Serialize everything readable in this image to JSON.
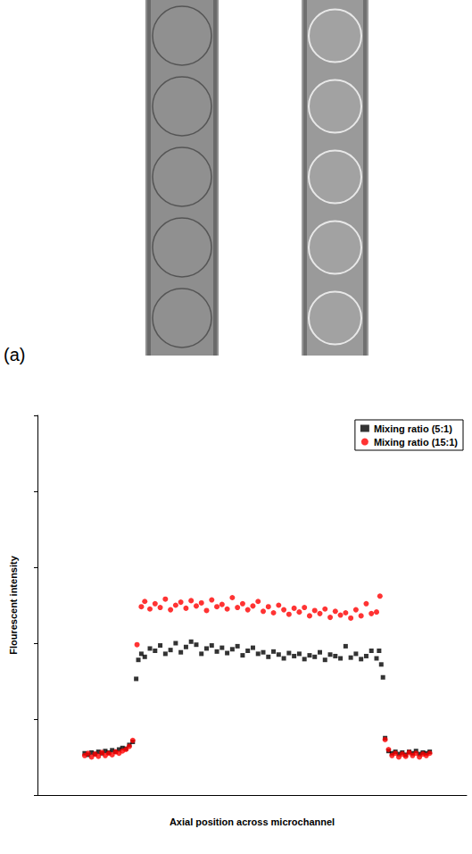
{
  "panel_label": "(a)",
  "chart_data": {
    "type": "scatter",
    "x_label": "Axial position across microchannel",
    "y_label": "Flourescent intensity",
    "xlim": [
      0,
      100
    ],
    "xticks": [],
    "ylim": [
      0,
      5
    ],
    "yticks": [
      0,
      1,
      2,
      3,
      4,
      5
    ],
    "tick_labels": false,
    "grid": false,
    "legend": "upper right",
    "series": [
      {
        "name": "Mixing ratio (5:1)",
        "color": "#000000",
        "marker": "square",
        "x": [
          11,
          11.8,
          12.6,
          13.4,
          14.2,
          15,
          15.8,
          16.6,
          17.4,
          18.2,
          19,
          19.8,
          20.6,
          21.4,
          22.2,
          23.0,
          23.5,
          24.2,
          25,
          26.2,
          27.4,
          28.6,
          29.8,
          31,
          32.2,
          33.4,
          34.6,
          35.8,
          37,
          38.2,
          39.4,
          40.6,
          41.8,
          43,
          44.2,
          45.4,
          46.6,
          47.8,
          49,
          50.2,
          51.4,
          52.6,
          53.8,
          55,
          56.2,
          57.4,
          58.6,
          59.8,
          61,
          62.2,
          63.4,
          64.6,
          65.8,
          67,
          68.2,
          69.4,
          70.6,
          71.8,
          73,
          74.2,
          75.4,
          76.6,
          77.8,
          79,
          79.6,
          80.1,
          80.5,
          81,
          81.8,
          82.6,
          83.4,
          84.2,
          85,
          85.8,
          86.6,
          87.4,
          88.2,
          89,
          89.8,
          90.6,
          91.4
        ],
        "values": [
          0.55,
          0.53,
          0.56,
          0.54,
          0.57,
          0.55,
          0.58,
          0.56,
          0.59,
          0.57,
          0.6,
          0.62,
          0.61,
          0.66,
          0.7,
          1.53,
          1.78,
          1.86,
          1.82,
          1.93,
          1.9,
          1.97,
          1.86,
          1.91,
          2.0,
          1.88,
          1.95,
          2.02,
          1.98,
          1.86,
          1.93,
          1.97,
          1.89,
          1.94,
          1.87,
          1.92,
          1.96,
          1.84,
          1.9,
          1.94,
          1.86,
          1.88,
          1.82,
          1.89,
          1.85,
          1.8,
          1.87,
          1.83,
          1.86,
          1.79,
          1.84,
          1.82,
          1.88,
          1.78,
          1.85,
          1.83,
          1.8,
          1.96,
          1.81,
          1.86,
          1.79,
          1.83,
          1.9,
          1.8,
          1.9,
          1.72,
          1.55,
          0.75,
          0.58,
          0.55,
          0.57,
          0.54,
          0.56,
          0.53,
          0.57,
          0.55,
          0.58,
          0.54,
          0.56,
          0.55,
          0.57
        ]
      },
      {
        "name": "Mixing ratio (15:1)",
        "color": "#ff0000",
        "marker": "circle",
        "x": [
          11,
          11.8,
          12.6,
          13.4,
          14.2,
          15,
          15.8,
          16.6,
          17.4,
          18.2,
          19,
          19.8,
          20.6,
          21.4,
          22.2,
          23.2,
          24.2,
          25,
          26.2,
          27.4,
          28.6,
          29.8,
          31,
          32.2,
          33.4,
          34.6,
          35.8,
          37,
          38.2,
          39.4,
          40.6,
          41.8,
          43,
          44.2,
          45.4,
          46.6,
          47.8,
          49,
          50.2,
          51.4,
          52.6,
          53.8,
          55,
          56.2,
          57.4,
          58.6,
          59.8,
          61,
          62.2,
          63.4,
          64.6,
          65.8,
          67,
          68.2,
          69.4,
          70.6,
          71.8,
          73,
          74.2,
          75.4,
          76.6,
          77.8,
          79,
          79.8,
          81,
          81.8,
          82.6,
          83.4,
          84.2,
          85,
          85.8,
          86.6,
          87.4,
          88.2,
          89,
          89.8,
          90.6,
          91.4
        ],
        "values": [
          0.52,
          0.55,
          0.5,
          0.54,
          0.51,
          0.56,
          0.52,
          0.55,
          0.53,
          0.57,
          0.55,
          0.58,
          0.6,
          0.64,
          0.72,
          1.98,
          2.48,
          2.55,
          2.45,
          2.52,
          2.47,
          2.58,
          2.44,
          2.5,
          2.54,
          2.46,
          2.56,
          2.49,
          2.53,
          2.43,
          2.57,
          2.48,
          2.51,
          2.45,
          2.6,
          2.47,
          2.52,
          2.44,
          2.49,
          2.55,
          2.42,
          2.48,
          2.4,
          2.5,
          2.44,
          2.38,
          2.46,
          2.41,
          2.47,
          2.36,
          2.43,
          2.39,
          2.45,
          2.34,
          2.42,
          2.37,
          2.4,
          2.33,
          2.44,
          2.36,
          2.52,
          2.39,
          2.41,
          2.62,
          0.73,
          0.6,
          0.52,
          0.55,
          0.5,
          0.54,
          0.51,
          0.56,
          0.52,
          0.55,
          0.5,
          0.54,
          0.52,
          0.55
        ]
      }
    ]
  }
}
